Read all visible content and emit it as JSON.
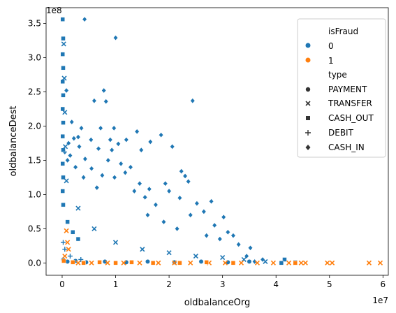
{
  "chart_data": {
    "type": "scatter",
    "title": "",
    "xlabel": "oldbalanceOrg",
    "ylabel": "oldbalanceDest",
    "x_offset_label": "1e7",
    "y_offset_label": "1e8",
    "xlim": [
      -0.3,
      6.1
    ],
    "ylim": [
      -0.18,
      3.73
    ],
    "x_ticks": [
      0,
      1,
      2,
      3,
      4,
      5,
      6
    ],
    "y_ticks": [
      0.0,
      0.5,
      1.0,
      1.5,
      2.0,
      2.5,
      3.0,
      3.5
    ],
    "x_tick_labels": [
      "0",
      "1",
      "2",
      "3",
      "4",
      "5",
      "6"
    ],
    "y_tick_labels": [
      "0.0",
      "0.5",
      "1.0",
      "1.5",
      "2.0",
      "2.5",
      "3.0",
      "3.5"
    ],
    "grid": false,
    "legend": {
      "placement": "top-right",
      "hue_title": "isFraud",
      "hue_entries": [
        {
          "label": "0",
          "color": "#1f77b4"
        },
        {
          "label": "1",
          "color": "#ff7f0e"
        }
      ],
      "style_title": "type",
      "style_entries": [
        {
          "label": "PAYMENT",
          "marker": "circle"
        },
        {
          "label": "TRANSFER",
          "marker": "x"
        },
        {
          "label": "CASH_OUT",
          "marker": "square"
        },
        {
          "label": "DEBIT",
          "marker": "plus"
        },
        {
          "label": "CASH_IN",
          "marker": "diamond"
        }
      ]
    },
    "series": [
      {
        "isFraud": "0",
        "type": "CASH_IN",
        "marker": "diamond",
        "color": "#1f77b4",
        "points": [
          [
            0.42,
            3.56
          ],
          [
            1.0,
            3.29
          ],
          [
            0.08,
            2.52
          ],
          [
            0.78,
            2.52
          ],
          [
            0.82,
            2.36
          ],
          [
            0.6,
            2.37
          ],
          [
            2.44,
            2.37
          ],
          [
            0.36,
            1.97
          ],
          [
            0.72,
            1.97
          ],
          [
            0.97,
            1.97
          ],
          [
            1.4,
            1.92
          ],
          [
            1.85,
            1.87
          ],
          [
            0.18,
            2.06
          ],
          [
            0.3,
            1.84
          ],
          [
            0.22,
            1.82
          ],
          [
            0.54,
            1.8
          ],
          [
            1.2,
            1.8
          ],
          [
            1.65,
            1.77
          ],
          [
            0.9,
            1.8
          ],
          [
            1.05,
            1.74
          ],
          [
            2.06,
            1.7
          ],
          [
            1.48,
            1.65
          ],
          [
            0.93,
            1.65
          ],
          [
            0.68,
            1.67
          ],
          [
            0.32,
            1.7
          ],
          [
            0.15,
            1.57
          ],
          [
            0.43,
            1.52
          ],
          [
            0.86,
            1.5
          ],
          [
            0.55,
            1.38
          ],
          [
            1.28,
            1.4
          ],
          [
            1.1,
            1.45
          ],
          [
            2.23,
            1.34
          ],
          [
            2.3,
            1.27
          ],
          [
            2.36,
            1.19
          ],
          [
            1.93,
            1.16
          ],
          [
            1.18,
            1.32
          ],
          [
            0.75,
            1.28
          ],
          [
            0.98,
            1.25
          ],
          [
            1.45,
            1.16
          ],
          [
            1.63,
            1.08
          ],
          [
            2.0,
            1.05
          ],
          [
            2.2,
            0.95
          ],
          [
            2.52,
            0.87
          ],
          [
            2.79,
            0.9
          ],
          [
            3.02,
            0.67
          ],
          [
            1.55,
            0.96
          ],
          [
            1.75,
            0.85
          ],
          [
            1.35,
            1.05
          ],
          [
            0.25,
            1.4
          ],
          [
            0.65,
            1.1
          ],
          [
            2.85,
            0.55
          ],
          [
            2.65,
            0.75
          ],
          [
            2.4,
            0.7
          ],
          [
            3.1,
            0.45
          ],
          [
            3.3,
            0.27
          ],
          [
            3.52,
            0.22
          ],
          [
            3.45,
            0.1
          ],
          [
            3.75,
            0.05
          ],
          [
            3.6,
            0.02
          ],
          [
            3.2,
            0.4
          ],
          [
            2.95,
            0.35
          ],
          [
            2.7,
            0.4
          ],
          [
            0.12,
            1.75
          ],
          [
            0.05,
            1.62
          ],
          [
            0.1,
            1.5
          ],
          [
            0.4,
            1.25
          ],
          [
            1.6,
            0.7
          ],
          [
            1.9,
            0.6
          ],
          [
            2.15,
            0.5
          ]
        ]
      },
      {
        "isFraud": "0",
        "type": "CASH_OUT",
        "marker": "square",
        "color": "#1f77b4",
        "points": [
          [
            0.01,
            3.56
          ],
          [
            0.02,
            3.28
          ],
          [
            0.01,
            3.05
          ],
          [
            0.02,
            2.85
          ],
          [
            0.01,
            2.65
          ],
          [
            0.02,
            2.45
          ],
          [
            0.01,
            2.25
          ],
          [
            0.02,
            2.05
          ],
          [
            0.01,
            1.85
          ],
          [
            0.02,
            1.65
          ],
          [
            0.01,
            1.45
          ],
          [
            0.02,
            1.25
          ],
          [
            0.01,
            1.05
          ],
          [
            0.02,
            0.85
          ],
          [
            0.1,
            0.6
          ],
          [
            0.2,
            0.45
          ],
          [
            0.3,
            0.35
          ],
          [
            4.16,
            0.05
          ],
          [
            4.36,
            0.01
          ],
          [
            4.1,
            0.0
          ]
        ]
      },
      {
        "isFraud": "0",
        "type": "PAYMENT",
        "marker": "circle",
        "color": "#1f77b4",
        "points": [
          [
            0.02,
            0.05
          ],
          [
            0.1,
            0.02
          ],
          [
            0.25,
            0.03
          ],
          [
            0.45,
            0.01
          ],
          [
            0.8,
            0.02
          ],
          [
            1.2,
            0.01
          ],
          [
            1.6,
            0.02
          ],
          [
            2.1,
            0.01
          ],
          [
            2.6,
            0.02
          ],
          [
            3.1,
            0.01
          ],
          [
            3.5,
            0.02
          ],
          [
            4.36,
            0.0
          ]
        ]
      },
      {
        "isFraud": "0",
        "type": "TRANSFER",
        "marker": "x",
        "color": "#1f77b4",
        "points": [
          [
            0.03,
            3.2
          ],
          [
            0.04,
            2.7
          ],
          [
            0.05,
            2.2
          ],
          [
            0.06,
            1.7
          ],
          [
            0.08,
            1.2
          ],
          [
            0.3,
            0.8
          ],
          [
            0.6,
            0.5
          ],
          [
            1.0,
            0.3
          ],
          [
            1.5,
            0.2
          ],
          [
            2.0,
            0.15
          ],
          [
            2.5,
            0.1
          ],
          [
            3.0,
            0.08
          ],
          [
            3.4,
            0.05
          ],
          [
            3.8,
            0.02
          ]
        ]
      },
      {
        "isFraud": "0",
        "type": "DEBIT",
        "marker": "plus",
        "color": "#1f77b4",
        "points": [
          [
            0.02,
            0.3
          ],
          [
            0.05,
            0.2
          ],
          [
            0.15,
            0.1
          ],
          [
            0.35,
            0.05
          ]
        ]
      },
      {
        "isFraud": "1",
        "type": "TRANSFER",
        "marker": "x",
        "color": "#ff7f0e",
        "points": [
          [
            0.08,
            0.47
          ],
          [
            0.1,
            0.3
          ],
          [
            0.12,
            0.2
          ],
          [
            0.05,
            0.1
          ],
          [
            0.3,
            0.0
          ],
          [
            0.55,
            0.0
          ],
          [
            0.85,
            0.0
          ],
          [
            1.15,
            0.0
          ],
          [
            1.45,
            0.0
          ],
          [
            1.8,
            0.0
          ],
          [
            2.1,
            0.0
          ],
          [
            2.4,
            0.0
          ],
          [
            2.75,
            0.0
          ],
          [
            3.05,
            0.0
          ],
          [
            3.35,
            0.0
          ],
          [
            3.65,
            0.0
          ],
          [
            3.95,
            0.0
          ],
          [
            4.24,
            0.0
          ],
          [
            4.36,
            0.0
          ],
          [
            4.47,
            0.0
          ],
          [
            4.55,
            0.0
          ],
          [
            4.96,
            0.0
          ],
          [
            5.05,
            0.0
          ],
          [
            5.74,
            0.0
          ],
          [
            5.95,
            0.0
          ]
        ]
      },
      {
        "isFraud": "1",
        "type": "CASH_OUT",
        "marker": "square",
        "color": "#ff7f0e",
        "points": [
          [
            0.03,
            0.03
          ],
          [
            0.2,
            0.01
          ],
          [
            0.4,
            0.0
          ],
          [
            0.7,
            0.01
          ],
          [
            1.0,
            0.0
          ],
          [
            1.3,
            0.01
          ],
          [
            1.7,
            0.0
          ],
          [
            2.2,
            0.0
          ],
          [
            2.7,
            0.01
          ],
          [
            3.2,
            0.0
          ],
          [
            4.36,
            0.0
          ]
        ]
      }
    ]
  }
}
